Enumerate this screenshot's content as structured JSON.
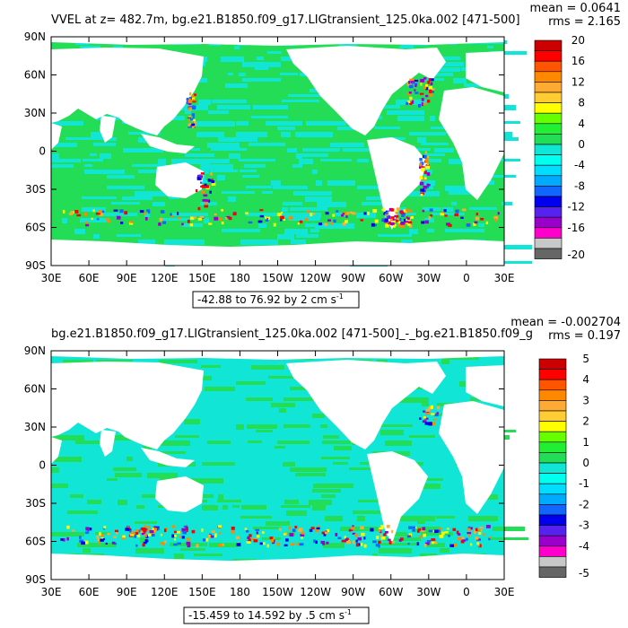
{
  "colors": {
    "land": "#ffffff",
    "ocean_zero_pos": "#22dd55",
    "ocean_zero_neg": "#11e6d6",
    "frame": "#000000"
  },
  "x_ticks": [
    "30E",
    "60E",
    "90E",
    "120E",
    "150E",
    "180",
    "150W",
    "120W",
    "90W",
    "60W",
    "30W",
    "0",
    "30E"
  ],
  "y_ticks": [
    "90N",
    "60N",
    "30N",
    "0",
    "30S",
    "60S",
    "90S"
  ],
  "panels": [
    {
      "title": "VVEL at z= 482.7m, bg.e21.B1850.f09_g17.LIGtransient_125.0ka.002 [471-500]",
      "mean": "mean = 0.0641",
      "rms": "rms = 2.165",
      "range": "-42.88 to 76.92 by 2 cm s",
      "range_sup": "-1",
      "colorbar": {
        "colors": [
          "#666666",
          "#c8c8c8",
          "#ff00cc",
          "#9900cc",
          "#5522ee",
          "#0000ee",
          "#1166ff",
          "#00aaff",
          "#00ddff",
          "#00ffee",
          "#11e6d6",
          "#22dd55",
          "#22ee33",
          "#66ff00",
          "#ffff00",
          "#ffcc33",
          "#ffaa33",
          "#ff8800",
          "#ff5500",
          "#ff0000",
          "#cc0000"
        ],
        "labels": [
          "-20",
          "-16",
          "-12",
          "-8",
          "-4",
          "0",
          "4",
          "8",
          "12",
          "16",
          "20"
        ]
      }
    },
    {
      "title": "bg.e21.B1850.f09_g17.LIGtransient_125.0ka.002 [471-500]_-_bg.e21.B1850.f09_g",
      "mean": "mean = -0.002704",
      "rms": "rms = 0.197",
      "range": "-15.459 to 14.592 by .5 cm s",
      "range_sup": "-1",
      "colorbar": {
        "colors": [
          "#666666",
          "#c8c8c8",
          "#ff00cc",
          "#9900cc",
          "#5522ee",
          "#0000ee",
          "#1166ff",
          "#00aaff",
          "#00ddff",
          "#00ffee",
          "#11e6d6",
          "#22dd55",
          "#22ee33",
          "#66ff00",
          "#ffff00",
          "#ffcc33",
          "#ffaa33",
          "#ff8800",
          "#ff5500",
          "#ff0000",
          "#cc0000"
        ],
        "labels": [
          "-5",
          "-4",
          "-3",
          "-2",
          "-1",
          "0",
          "1",
          "2",
          "3",
          "4",
          "5"
        ]
      }
    }
  ]
}
